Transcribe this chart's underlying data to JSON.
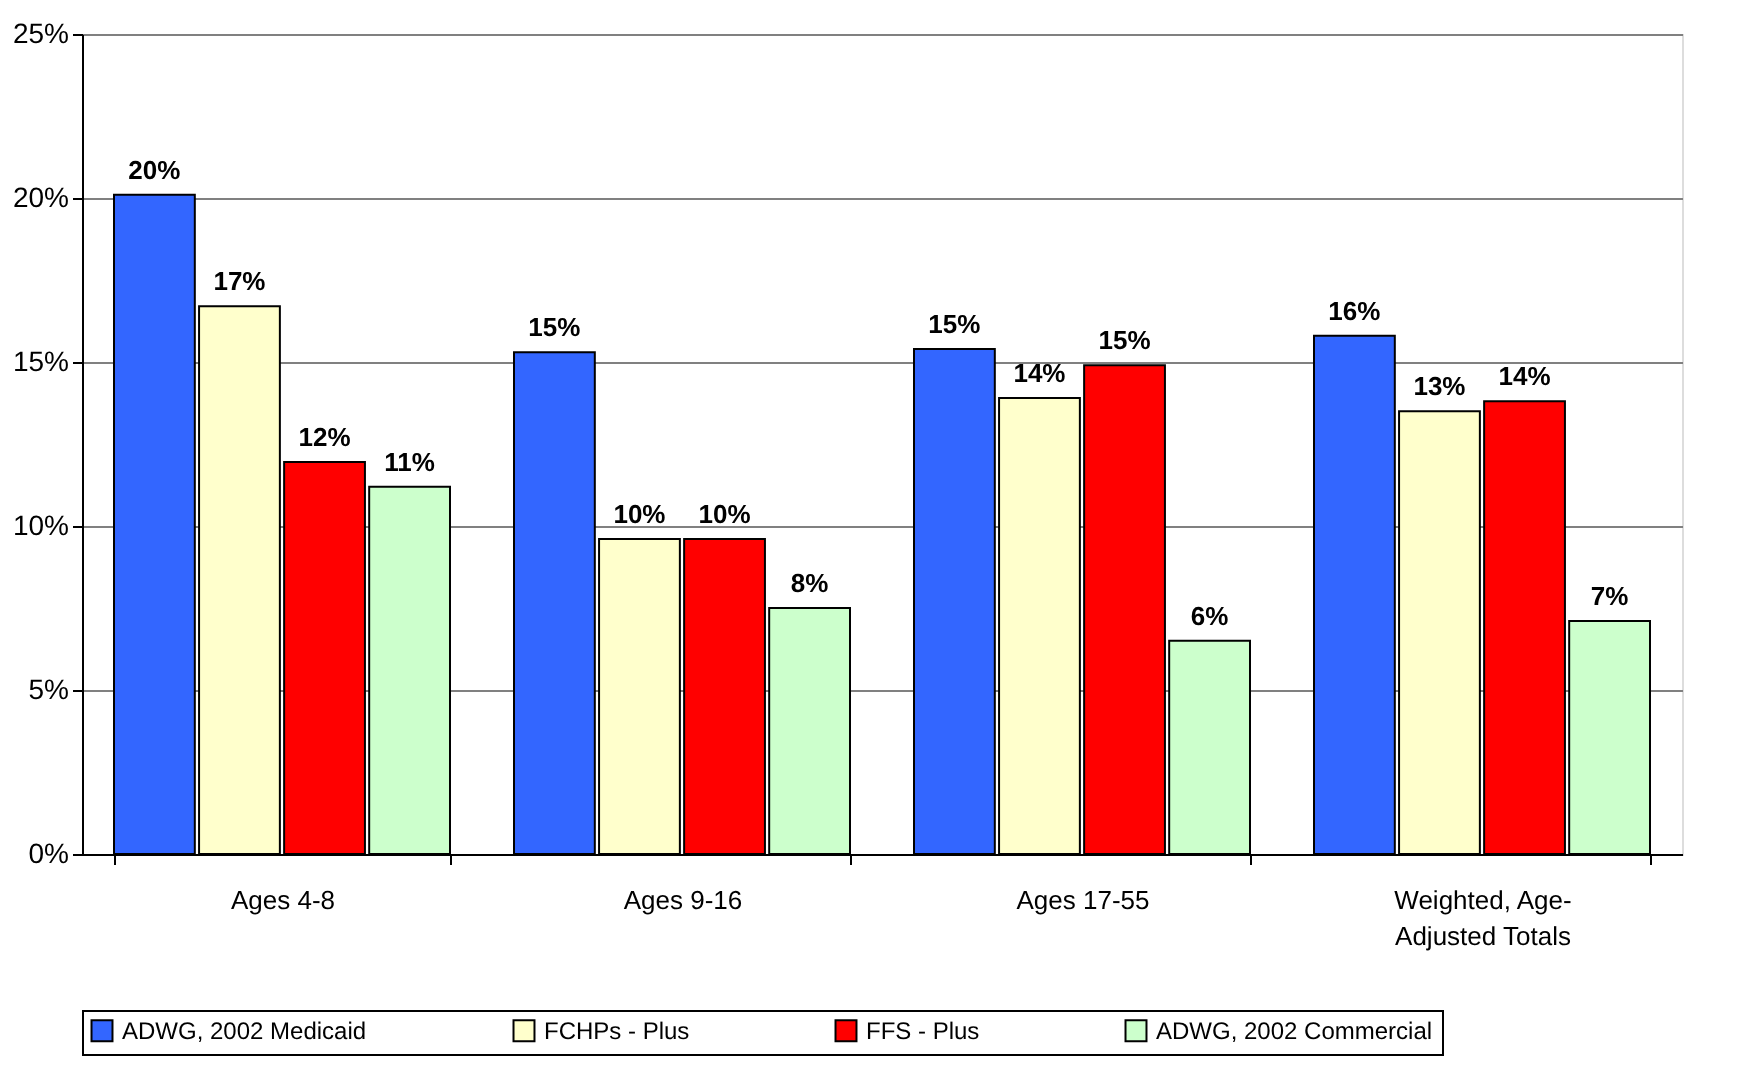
{
  "chart_data": {
    "type": "bar",
    "categories": [
      "Ages 4-8",
      "Ages 9-16",
      "Ages 17-55",
      "Weighted, Age-Adjusted Totals"
    ],
    "series": [
      {
        "name": "ADWG, 2002 Medicaid",
        "color": "#3366ff",
        "values": [
          20.1,
          15.3,
          15.4,
          15.8
        ],
        "value_labels": [
          "20%",
          "15%",
          "15%",
          "16%"
        ]
      },
      {
        "name": "FCHPs - Plus",
        "color": "#ffffcc",
        "values": [
          16.7,
          9.6,
          13.9,
          13.5
        ],
        "value_labels": [
          "17%",
          "10%",
          "14%",
          "13%"
        ]
      },
      {
        "name": "FFS - Plus",
        "color": "#ff0000",
        "values": [
          11.95,
          9.6,
          14.9,
          13.8
        ],
        "value_labels": [
          "12%",
          "10%",
          "15%",
          "14%"
        ]
      },
      {
        "name": "ADWG, 2002 Commercial",
        "color": "#ccffcc",
        "values": [
          11.2,
          7.5,
          6.5,
          7.1
        ],
        "value_labels": [
          "11%",
          "8%",
          "6%",
          "7%"
        ]
      }
    ],
    "ylim": [
      0,
      25
    ],
    "yticks": [
      {
        "value": 0,
        "label": "0%"
      },
      {
        "value": 5,
        "label": "5%"
      },
      {
        "value": 10,
        "label": "10%"
      },
      {
        "value": 15,
        "label": "15%"
      },
      {
        "value": 20,
        "label": "20%"
      },
      {
        "value": 25,
        "label": "25%"
      }
    ],
    "grid": "y",
    "legend": "bottom"
  }
}
